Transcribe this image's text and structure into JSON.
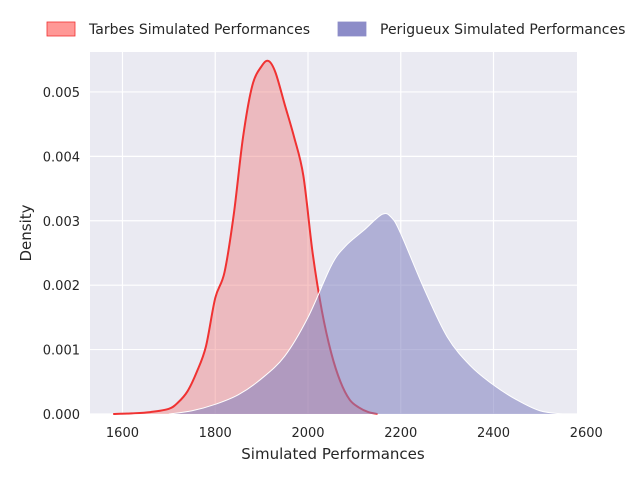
{
  "chart_data": {
    "type": "area",
    "title": "",
    "xlabel": "Simulated Performances",
    "ylabel": "Density",
    "xlim": [
      1530,
      2580
    ],
    "ylim": [
      0,
      0.00562
    ],
    "xticks": [
      "1600",
      "1800",
      "2000",
      "2200",
      "2400",
      "2600"
    ],
    "yticks": [
      "0.000",
      "0.001",
      "0.002",
      "0.003",
      "0.004",
      "0.005"
    ],
    "grid": true,
    "legend_position": "top",
    "series": [
      {
        "name": "Tarbes Simulated Performances",
        "fill_color": "#f08080",
        "fill_opacity": 0.45,
        "line_color": "#f03232",
        "legend_color": "#ff9896",
        "points": [
          [
            1580,
            0
          ],
          [
            1620,
            1e-05
          ],
          [
            1660,
            3e-05
          ],
          [
            1700,
            8e-05
          ],
          [
            1720,
            0.00018
          ],
          [
            1740,
            0.00035
          ],
          [
            1760,
            0.00065
          ],
          [
            1780,
            0.00105
          ],
          [
            1800,
            0.0018
          ],
          [
            1820,
            0.0022
          ],
          [
            1840,
            0.0031
          ],
          [
            1860,
            0.0043
          ],
          [
            1880,
            0.0051
          ],
          [
            1900,
            0.0054
          ],
          [
            1915,
            0.00548
          ],
          [
            1930,
            0.0053
          ],
          [
            1950,
            0.0048
          ],
          [
            1970,
            0.0043
          ],
          [
            1990,
            0.0037
          ],
          [
            2010,
            0.0025
          ],
          [
            2030,
            0.0016
          ],
          [
            2050,
            0.00095
          ],
          [
            2070,
            0.0005
          ],
          [
            2090,
            0.00022
          ],
          [
            2110,
            0.0001
          ],
          [
            2130,
            3e-05
          ],
          [
            2150,
            0
          ]
        ]
      },
      {
        "name": "Perigueux Simulated Performances",
        "fill_color": "#8080c0",
        "fill_opacity": 0.55,
        "line_color": "#ffffff",
        "legend_color": "#8c8cc8",
        "points": [
          [
            1700,
            0
          ],
          [
            1750,
            5e-05
          ],
          [
            1800,
            0.00015
          ],
          [
            1850,
            0.0003
          ],
          [
            1900,
            0.00055
          ],
          [
            1950,
            0.0009
          ],
          [
            2000,
            0.0015
          ],
          [
            2050,
            0.0023
          ],
          [
            2080,
            0.0026
          ],
          [
            2120,
            0.00285
          ],
          [
            2160,
            0.0031
          ],
          [
            2180,
            0.00305
          ],
          [
            2200,
            0.0028
          ],
          [
            2250,
            0.00195
          ],
          [
            2300,
            0.0012
          ],
          [
            2350,
            0.00075
          ],
          [
            2400,
            0.00045
          ],
          [
            2450,
            0.00022
          ],
          [
            2500,
            5e-05
          ],
          [
            2550,
            0
          ]
        ]
      }
    ]
  }
}
